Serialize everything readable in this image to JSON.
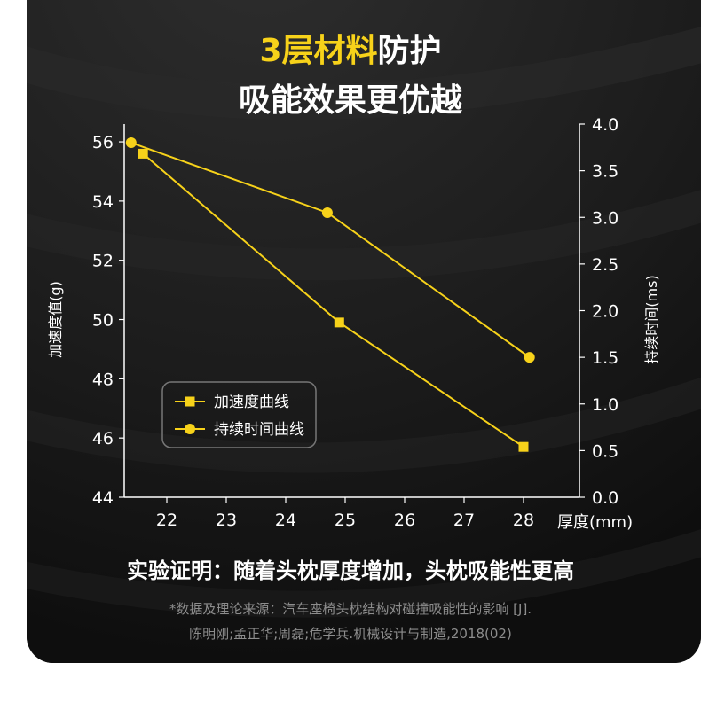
{
  "title": {
    "line1_highlight": "3层材料",
    "line1_rest": "防护",
    "line2": "吸能效果更优越"
  },
  "colors": {
    "accent": "#f7d21a",
    "background": "#141414",
    "axis": "#ffffff",
    "muted": "#8d8d8d"
  },
  "chart_data": {
    "type": "line",
    "xlabel": "厚度(mm)",
    "ylabel_left": "加速度值(g)",
    "ylabel_right": "持续时间(ms)",
    "x_ticks": [
      "22",
      "23",
      "24",
      "25",
      "26",
      "27",
      "28"
    ],
    "y_left_ticks": [
      "44",
      "46",
      "48",
      "50",
      "52",
      "54",
      "56"
    ],
    "y_right_ticks": [
      "0.0",
      "0.5",
      "1.0",
      "1.5",
      "2.0",
      "2.5",
      "3.0",
      "3.5",
      "4.0"
    ],
    "xlim": [
      21.2,
      28.7
    ],
    "ylim_left": [
      44,
      56.6
    ],
    "ylim_right": [
      0,
      4
    ],
    "legend_position": "middle-left",
    "series": [
      {
        "name": "加速度曲线",
        "axis": "left",
        "marker": "square",
        "points": [
          [
            21.6,
            55.6
          ],
          [
            24.9,
            49.9
          ],
          [
            28.0,
            45.7
          ]
        ]
      },
      {
        "name": "持续时间曲线",
        "axis": "right",
        "marker": "circle",
        "points": [
          [
            21.4,
            3.8
          ],
          [
            24.7,
            3.05
          ],
          [
            28.1,
            1.5
          ]
        ]
      }
    ]
  },
  "conclusion": "实验证明：随着头枕厚度增加，头枕吸能性更高",
  "source": {
    "line1": "*数据及理论来源：汽车座椅头枕结构对碰撞吸能性的影响 [J].",
    "line2": "陈明刚;孟正华;周磊;危学兵.机械设计与制造,2018(02)"
  }
}
